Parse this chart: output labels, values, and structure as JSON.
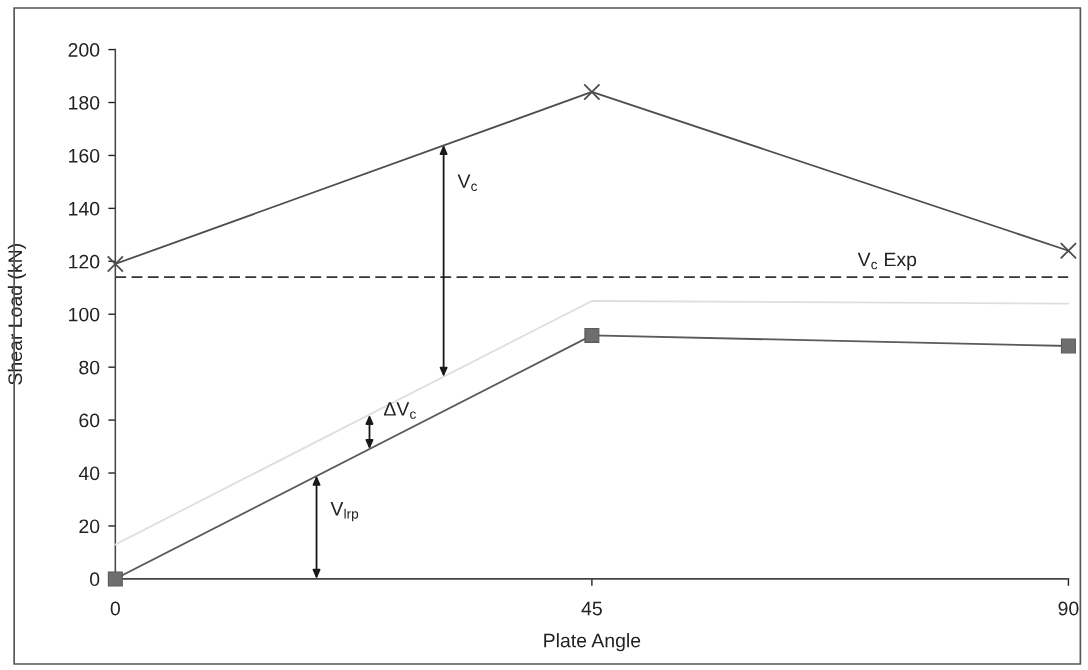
{
  "chart_data": {
    "type": "line",
    "xlabel": "Plate Angle",
    "ylabel": "Shear Load (kN)",
    "x": [
      0,
      45,
      90
    ],
    "series": [
      {
        "color": "#4d4d4d",
        "marker": "cross",
        "values": [
          119,
          184,
          124
        ]
      },
      {
        "color": "#dedede",
        "marker": "none",
        "values": [
          13,
          105,
          104
        ]
      },
      {
        "color": "#5a5a5a",
        "marker": "square",
        "values": [
          0,
          92,
          88
        ]
      }
    ],
    "xlim": [
      0,
      90
    ],
    "xticks": [
      0,
      45,
      90
    ],
    "ylim": [
      0,
      200
    ],
    "yticks": [
      0,
      20,
      40,
      60,
      80,
      100,
      120,
      140,
      160,
      180,
      200
    ],
    "ref_lines": [
      {
        "axis": "y",
        "value": 114,
        "label": "V$_{c}$ Exp",
        "color": "#333333",
        "line_style": "dashed"
      }
    ],
    "annotations": [
      {
        "text": "V$_{c}$",
        "x": 31,
        "y": 164
      },
      {
        "text": "ΔV$_{c}$",
        "x": 24,
        "y": 62
      },
      {
        "text": "V$_{lrp}$",
        "x": 19,
        "y": 39
      }
    ],
    "line_style": "solid",
    "grid": false
  }
}
